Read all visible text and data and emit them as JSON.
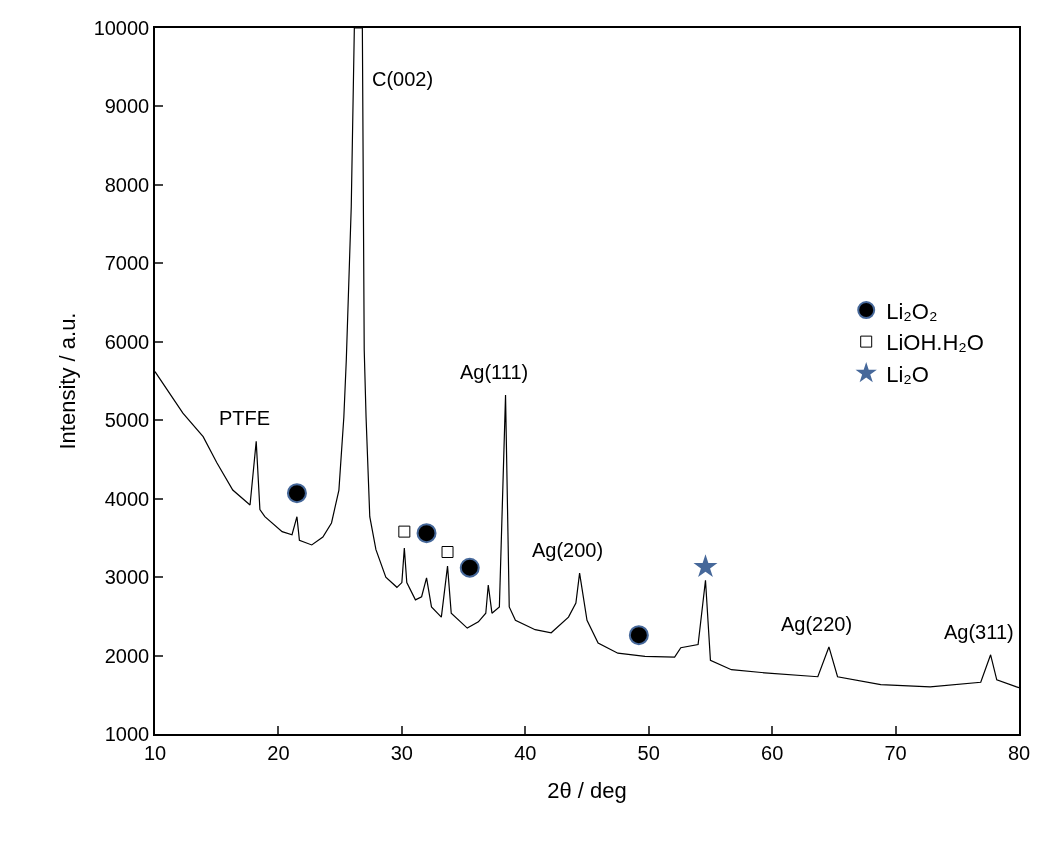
{
  "chart_data": {
    "type": "line",
    "xlabel": "2θ / deg",
    "ylabel": "Intensity / a.u.",
    "xlim": [
      10,
      80
    ],
    "xticks": [
      10,
      20,
      30,
      40,
      50,
      60,
      70,
      80
    ],
    "ylim": [
      1000,
      10000
    ],
    "yticks": [
      1000,
      2000,
      3000,
      4000,
      5000,
      6000,
      7000,
      8000,
      9000,
      10000
    ],
    "grid": false,
    "legend": "right",
    "line_style": "solid",
    "series": [
      {
        "color": "#000000",
        "marker": "none",
        "x": [
          10,
          12.26,
          13.9,
          15.0,
          16.3,
          17.7,
          18.2,
          18.5,
          18.9,
          20.3,
          21.1,
          21.5,
          21.7,
          22.7,
          23.6,
          24.3,
          24.9,
          25.3,
          25.5,
          25.9,
          26.15,
          26.8,
          26.95,
          27.1,
          27.4,
          27.9,
          28.7,
          29.6,
          30.0,
          30.2,
          30.4,
          31.1,
          31.6,
          32.0,
          32.4,
          33.2,
          33.7,
          34.0,
          35.3,
          36.2,
          36.8,
          37.0,
          37.3,
          37.9,
          38.4,
          38.7,
          39.2,
          40.8,
          42.1,
          43.5,
          44.1,
          44.4,
          45.0,
          45.9,
          47.5,
          49.7,
          52.1,
          52.6,
          54.0,
          54.6,
          55.0,
          56.7,
          59.4,
          63.7,
          64.6,
          65.3,
          68.8,
          72.8,
          76.9,
          77.7,
          78.2,
          79.8,
          80
        ],
        "values": [
          5620,
          5090,
          4790,
          4460,
          4110,
          3920,
          4730,
          3860,
          3770,
          3580,
          3540,
          3770,
          3470,
          3410,
          3510,
          3690,
          4110,
          5040,
          5770,
          7720,
          10000,
          10000,
          5900,
          5040,
          3770,
          3350,
          3000,
          2870,
          2930,
          3370,
          2930,
          2710,
          2750,
          2990,
          2620,
          2490,
          3140,
          2540,
          2350,
          2430,
          2540,
          2900,
          2540,
          2620,
          5320,
          2620,
          2450,
          2330,
          2290,
          2490,
          2670,
          3050,
          2450,
          2160,
          2030,
          1990,
          1980,
          2100,
          2140,
          2960,
          1940,
          1820,
          1780,
          1730,
          2110,
          1730,
          1630,
          1600,
          1660,
          2010,
          1690,
          1600,
          1590
        ]
      },
      {
        "type": "scatter",
        "name": "Li₂O₂",
        "color": "#000000",
        "marker": "circle",
        "x": [
          21.5,
          32.0,
          35.5,
          49.2
        ],
        "values": [
          4070,
          3560,
          3120,
          2260
        ]
      },
      {
        "type": "scatter",
        "name": "LiOH.H₂O",
        "color": "#000000",
        "marker": "square",
        "x": [
          30.2,
          33.7
        ],
        "values": [
          3580,
          3320
        ]
      },
      {
        "type": "scatter",
        "name": "Li₂O",
        "color": "#46689a",
        "marker": "star",
        "x": [
          54.6
        ],
        "values": [
          3130
        ]
      }
    ],
    "annotations": [
      {
        "text": "PTFE",
        "x": 18.2,
        "y": 4730
      },
      {
        "text": "C(002)",
        "x": 26.8,
        "y": 10000
      },
      {
        "text": "Ag(111)",
        "x": 38.4,
        "y": 5320
      },
      {
        "text": "Ag(200)",
        "x": 44.4,
        "y": 3050
      },
      {
        "text": "Ag(220)",
        "x": 64.6,
        "y": 2110
      },
      {
        "text": "Ag(311)",
        "x": 77.7,
        "y": 2010
      }
    ]
  }
}
